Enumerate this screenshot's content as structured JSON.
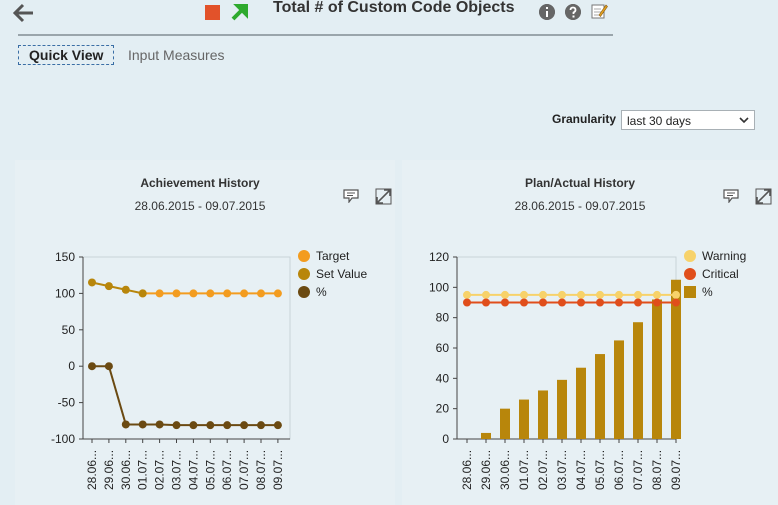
{
  "header": {
    "title": "Total # of Custom Code Objects"
  },
  "tabs": {
    "quick_view": "Quick View",
    "input_measures": "Input Measures"
  },
  "granularity": {
    "label": "Granularity",
    "value": "last 30 days"
  },
  "colors": {
    "target": "#f39c1f",
    "set_value": "#b8860b",
    "percent_line": "#6b4a12",
    "warning": "#f7d26a",
    "critical": "#e04e1b",
    "percent_bar": "#b8860b",
    "background": "#e3eef3"
  },
  "chart_data": [
    {
      "type": "line",
      "title": "Achievement History",
      "subtitle": "28.06.2015 - 09.07.2015",
      "categories": [
        "28.06...",
        "29.06...",
        "30.06...",
        "01.07...",
        "02.07...",
        "03.07...",
        "04.07...",
        "05.07...",
        "06.07...",
        "07.07...",
        "08.07...",
        "09.07..."
      ],
      "ylim": [
        -100,
        150
      ],
      "yticks": [
        150,
        100,
        50,
        0,
        -50,
        -100
      ],
      "legend_position": "right",
      "series": [
        {
          "name": "Target",
          "values": [
            null,
            null,
            null,
            100,
            100,
            100,
            100,
            100,
            100,
            100,
            100,
            100
          ]
        },
        {
          "name": "Set Value",
          "values": [
            115,
            110,
            105,
            100,
            null,
            null,
            null,
            null,
            null,
            null,
            null,
            null
          ]
        },
        {
          "name": "%",
          "values": [
            0,
            0,
            -80,
            -80,
            -80,
            -81,
            -81,
            -81,
            -81,
            -81,
            -81,
            -81
          ]
        }
      ]
    },
    {
      "type": "bar",
      "title": "Plan/Actual History",
      "subtitle": "28.06.2015 - 09.07.2015",
      "categories": [
        "28.06...",
        "29.06...",
        "30.06...",
        "01.07...",
        "02.07...",
        "03.07...",
        "04.07...",
        "05.07...",
        "06.07...",
        "07.07...",
        "08.07...",
        "09.07..."
      ],
      "ylim": [
        0,
        120
      ],
      "yticks": [
        120,
        100,
        80,
        60,
        40,
        20,
        0
      ],
      "legend_position": "right",
      "series": [
        {
          "name": "Warning",
          "type": "line",
          "values": [
            95,
            95,
            95,
            95,
            95,
            95,
            95,
            95,
            95,
            95,
            95,
            95
          ]
        },
        {
          "name": "Critical",
          "type": "line",
          "values": [
            90,
            90,
            90,
            90,
            90,
            90,
            90,
            90,
            90,
            90,
            90,
            90
          ]
        },
        {
          "name": "%",
          "type": "bar",
          "values": [
            0,
            4,
            20,
            26,
            32,
            39,
            47,
            56,
            65,
            77,
            92,
            105
          ]
        }
      ]
    }
  ]
}
